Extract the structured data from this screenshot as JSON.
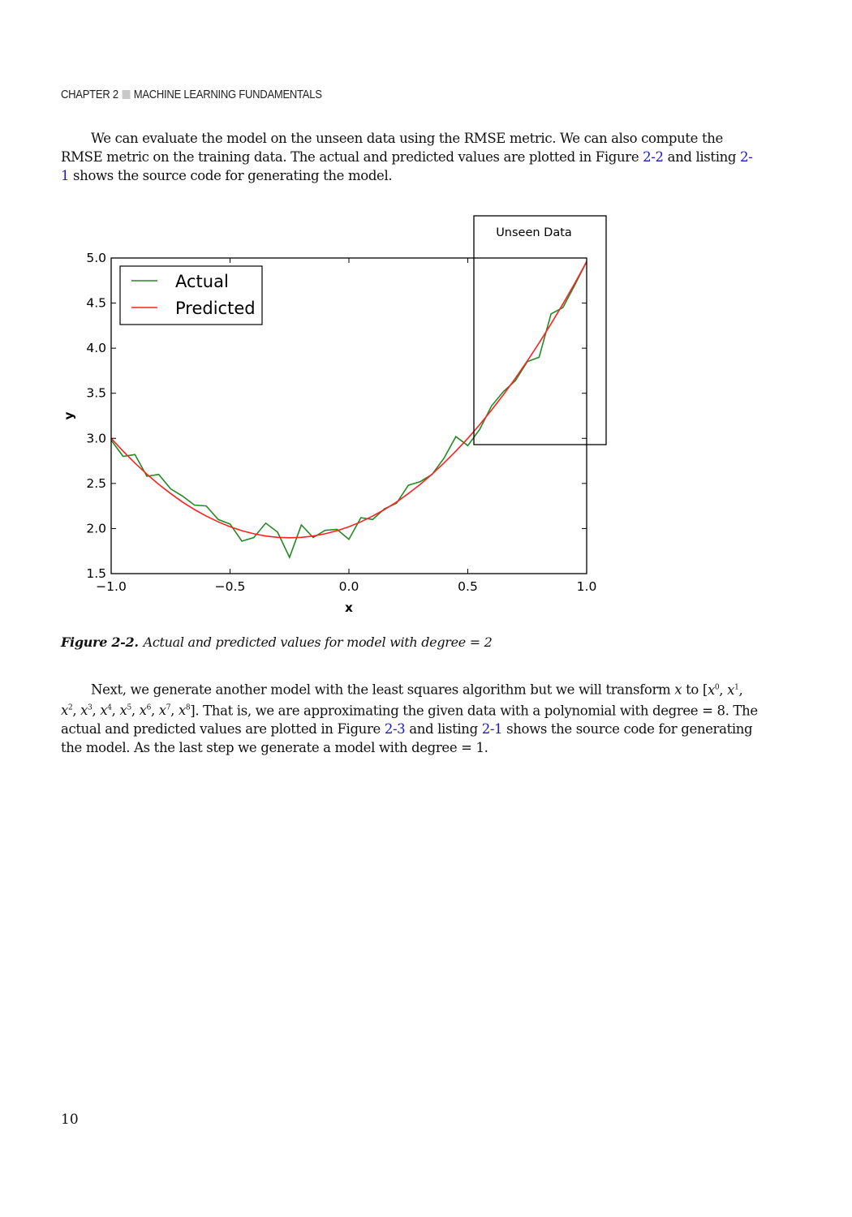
{
  "header": {
    "chapter": "CHAPTER 2",
    "title": "MACHINE LEARNING FUNDAMENTALS"
  },
  "para1": {
    "t1": "We can evaluate the model on the unseen data using the RMSE metric. We can also compute the RMSE metric on the training data. The actual and predicted values are plotted in Figure ",
    "link1": "2-2",
    "t2": " and listing ",
    "link2": "2-1",
    "t3": " shows the source code for generating the model."
  },
  "caption": {
    "label": "Figure 2-2.",
    "text": "Actual and predicted values for model with degree = 2"
  },
  "para2": {
    "t1": "Next, we generate another model with the least squares algorithm but we will transform ",
    "x": "x",
    "t2": " to [",
    "t3": "]. That is, we are approximating the given data with a polynomial with degree = 8. The actual and predicted values are plotted in Figure ",
    "link1": "2-3",
    "t4": " and listing ",
    "link2": "2-1",
    "t5": " shows the source code for generating the model. As the last step we generate a model with degree = 1.",
    "powers": [
      "0",
      "1",
      "2",
      "3",
      "4",
      "5",
      "6",
      "7",
      "8"
    ]
  },
  "page_number": "10",
  "chart_data": {
    "type": "line",
    "title": "",
    "xlabel": "x",
    "ylabel": "y",
    "xlim": [
      -1.0,
      1.0
    ],
    "ylim": [
      1.5,
      5.0
    ],
    "xticks": [
      "−1.0",
      "−0.5",
      "0.0",
      "0.5",
      "1.0"
    ],
    "xtick_values": [
      -1.0,
      -0.5,
      0.0,
      0.5,
      1.0
    ],
    "yticks": [
      "1.5",
      "2.0",
      "2.5",
      "3.0",
      "3.5",
      "4.0",
      "4.5",
      "5.0"
    ],
    "ytick_values": [
      1.5,
      2.0,
      2.5,
      3.0,
      3.5,
      4.0,
      4.5,
      5.0
    ],
    "legend_position": "top-left",
    "annotation": {
      "label": "Unseen Data",
      "x_range": [
        0.53,
        1.08
      ],
      "y_range": [
        2.93,
        5.47
      ]
    },
    "x": [
      -1,
      -0.95,
      -0.9,
      -0.85,
      -0.8,
      -0.75,
      -0.7,
      -0.65,
      -0.6,
      -0.55,
      -0.5,
      -0.45,
      -0.4,
      -0.35,
      -0.3,
      -0.25,
      -0.2,
      -0.15,
      -0.1,
      -0.05,
      0,
      0.05,
      0.1,
      0.15,
      0.2,
      0.25,
      0.3,
      0.35,
      0.4,
      0.45,
      0.5,
      0.55,
      0.6,
      0.65,
      0.7,
      0.75,
      0.8,
      0.85,
      0.9,
      0.95,
      1.0
    ],
    "series": [
      {
        "name": "Actual",
        "color": "#228B22",
        "values": [
          2.98,
          2.8,
          2.82,
          2.58,
          2.6,
          2.44,
          2.36,
          2.26,
          2.25,
          2.1,
          2.05,
          1.86,
          1.9,
          2.06,
          1.96,
          1.68,
          2.04,
          1.9,
          1.98,
          1.99,
          1.88,
          2.12,
          2.1,
          2.22,
          2.28,
          2.48,
          2.52,
          2.6,
          2.78,
          3.02,
          2.92,
          3.1,
          3.36,
          3.52,
          3.64,
          3.85,
          3.9,
          4.38,
          4.45,
          4.7,
          4.96
        ]
      },
      {
        "name": "Predicted",
        "color": "#ff2020",
        "values": [
          3.0,
          2.858,
          2.726,
          2.603,
          2.49,
          2.388,
          2.294,
          2.211,
          2.138,
          2.074,
          2.02,
          1.976,
          1.942,
          1.917,
          1.902,
          1.898,
          1.902,
          1.917,
          1.942,
          1.976,
          2.02,
          2.074,
          2.138,
          2.211,
          2.294,
          2.388,
          2.49,
          2.603,
          2.726,
          2.858,
          3.0,
          3.152,
          3.314,
          3.485,
          3.666,
          3.858,
          4.058,
          4.269,
          4.49,
          4.72,
          4.96
        ]
      }
    ]
  }
}
